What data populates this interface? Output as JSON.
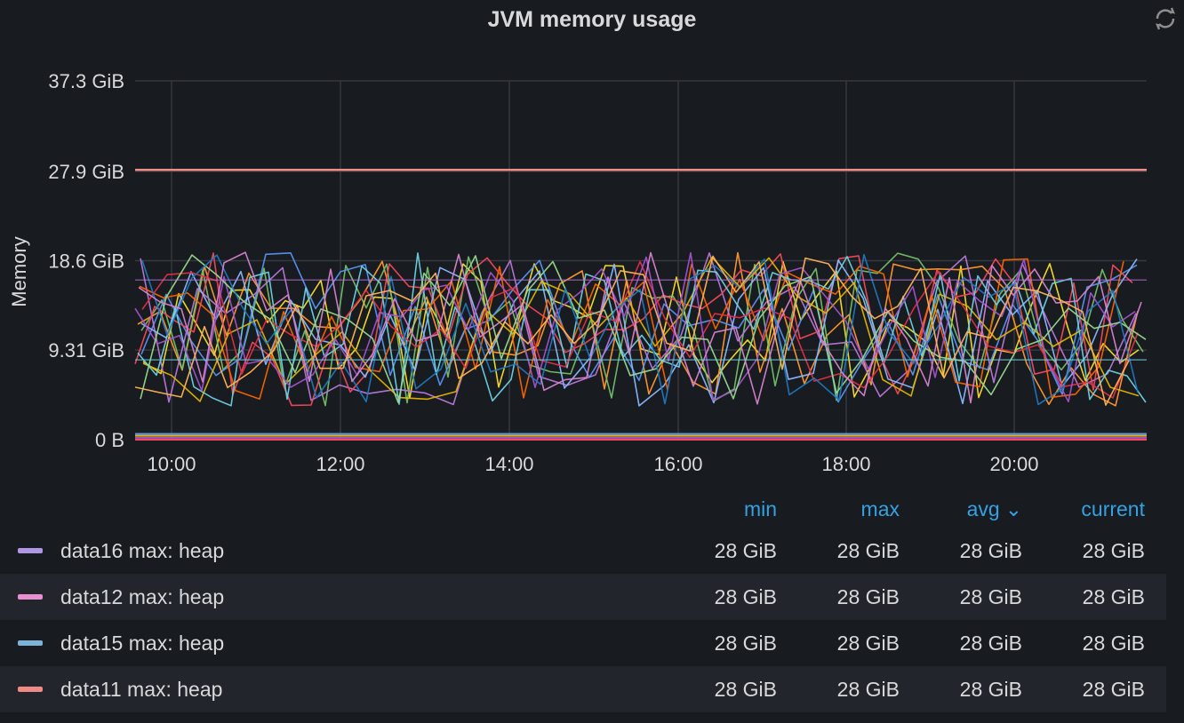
{
  "panel": {
    "title": "JVM memory usage",
    "refresh_icon": "refresh-icon"
  },
  "chart_data": {
    "type": "line",
    "title": "JVM memory usage",
    "ylabel": "Memory",
    "xlabel": "",
    "ylim": [
      0,
      37.3
    ],
    "y_unit": "GiB",
    "y_ticks": [
      "0 B",
      "9.31 GiB",
      "18.6 GiB",
      "27.9 GiB",
      "37.3 GiB"
    ],
    "x_ticks": [
      "10:00",
      "12:00",
      "14:00",
      "16:00",
      "18:00",
      "20:00"
    ],
    "grid": true,
    "legend": "bottom",
    "series_constant": [
      {
        "name": "data16 max: heap",
        "color": "#b096e6",
        "value": 28
      },
      {
        "name": "data12 max: heap",
        "color": "#e68fd1",
        "value": 28
      },
      {
        "name": "data15 max: heap",
        "color": "#7eb3d8",
        "value": 28
      },
      {
        "name": "data11 max: heap",
        "color": "#ef8a84",
        "value": 28
      }
    ],
    "noisy_colors": [
      "#fade2a",
      "#ff9830",
      "#73bf69",
      "#5794f2",
      "#b877d9",
      "#f2495c",
      "#8ab8ff",
      "#fa6400",
      "#e0b400",
      "#6ed0e0",
      "#e02f44",
      "#a352cc",
      "#96d98d",
      "#1f78c1",
      "#d683ce",
      "#ffb357"
    ]
  },
  "legend": {
    "columns": {
      "min": "min",
      "max": "max",
      "avg": "avg",
      "current": "current"
    },
    "rows": [
      {
        "name": "data16 max: heap",
        "color": "#b096e6",
        "min": "28 GiB",
        "max": "28 GiB",
        "avg": "28 GiB",
        "current": "28 GiB"
      },
      {
        "name": "data12 max: heap",
        "color": "#e68fd1",
        "min": "28 GiB",
        "max": "28 GiB",
        "avg": "28 GiB",
        "current": "28 GiB"
      },
      {
        "name": "data15 max: heap",
        "color": "#7eb3d8",
        "min": "28 GiB",
        "max": "28 GiB",
        "avg": "28 GiB",
        "current": "28 GiB"
      },
      {
        "name": "data11 max: heap",
        "color": "#ef8a84",
        "min": "28 GiB",
        "max": "28 GiB",
        "avg": "28 GiB",
        "current": "28 GiB"
      }
    ]
  }
}
